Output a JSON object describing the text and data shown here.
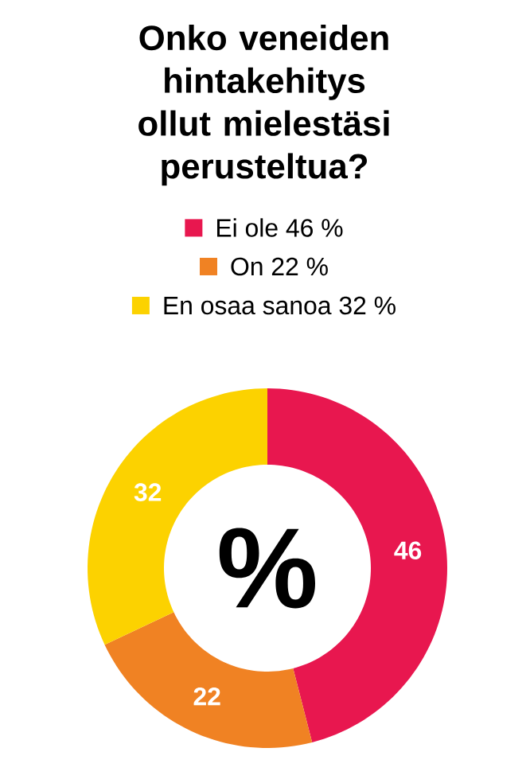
{
  "chart_data": {
    "type": "donut",
    "title": "Onko veneiden hintakehitys ollut mielestäsi perusteltua?",
    "categories": [
      "Ei ole 46 %",
      "On 22 %",
      "En osaa sanoa 32 %"
    ],
    "values": [
      46,
      22,
      32
    ],
    "colors": [
      "#e8174f",
      "#f08223",
      "#fcd200"
    ],
    "data_labels": true,
    "legend": "top",
    "annotations": [
      "%"
    ]
  }
}
